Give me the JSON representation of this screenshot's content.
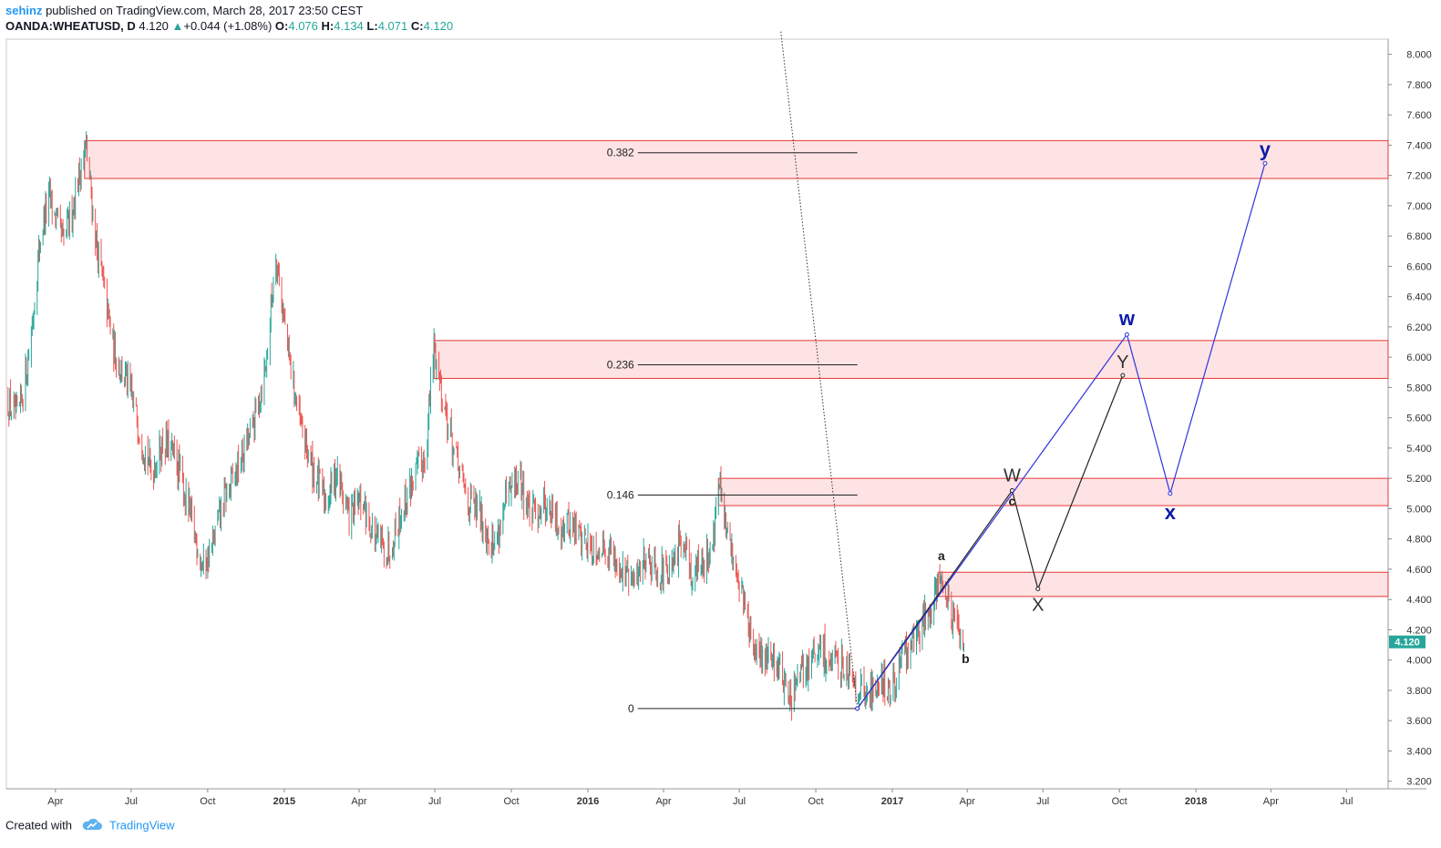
{
  "header": {
    "author": "sehinz",
    "published_text": " published on TradingView.com, March 28, 2017 23:50 CEST",
    "symbol": "OANDA:WHEATUSD, D",
    "last": "4.120",
    "change_arrow": "▲",
    "change": "+0.044 (+1.08%)",
    "open_label": "O:",
    "open": "4.076",
    "high_label": "H:",
    "high": "4.134",
    "low_label": "L:",
    "low": "4.071",
    "close_label": "C:",
    "close": "4.120"
  },
  "footer": {
    "created_with": "Created with",
    "brand": "TradingView",
    "brand_icon": "cloud-icon"
  },
  "colors": {
    "accent": "#2196f3",
    "up": "#26a69a",
    "down": "#ef5350",
    "zone_fill": "#fde3e4",
    "zone_border": "#e53935",
    "primary_wave": "#3333dd",
    "primary_label": "#0d1aa6",
    "secondary_wave": "#222222",
    "price_tag": "#26a69a"
  },
  "chart_data": {
    "type": "candlestick",
    "symbol": "OANDA:WHEATUSD",
    "interval": "D",
    "y_axis": {
      "range": [
        3.15,
        8.1
      ],
      "ticks": [
        "3.200",
        "3.400",
        "3.600",
        "3.800",
        "4.000",
        "4.200",
        "4.400",
        "4.600",
        "4.800",
        "5.000",
        "5.200",
        "5.400",
        "5.600",
        "5.800",
        "6.000",
        "6.200",
        "6.400",
        "6.600",
        "6.800",
        "7.000",
        "7.200",
        "7.400",
        "7.600",
        "7.800",
        "8.000"
      ],
      "last_price_tag": "4.120"
    },
    "x_axis": {
      "range": [
        "2014-02-01",
        "2018-08-20"
      ],
      "ticks": [
        {
          "date": "2014-04-01",
          "label": "Apr",
          "bold": false
        },
        {
          "date": "2014-07-01",
          "label": "Jul",
          "bold": false
        },
        {
          "date": "2014-10-01",
          "label": "Oct",
          "bold": false
        },
        {
          "date": "2015-01-01",
          "label": "2015",
          "bold": true
        },
        {
          "date": "2015-04-01",
          "label": "Apr",
          "bold": false
        },
        {
          "date": "2015-07-01",
          "label": "Jul",
          "bold": false
        },
        {
          "date": "2015-10-01",
          "label": "Oct",
          "bold": false
        },
        {
          "date": "2016-01-01",
          "label": "2016",
          "bold": true
        },
        {
          "date": "2016-04-01",
          "label": "Apr",
          "bold": false
        },
        {
          "date": "2016-07-01",
          "label": "Jul",
          "bold": false
        },
        {
          "date": "2016-10-01",
          "label": "Oct",
          "bold": false
        },
        {
          "date": "2017-01-01",
          "label": "2017",
          "bold": true
        },
        {
          "date": "2017-04-01",
          "label": "Apr",
          "bold": false
        },
        {
          "date": "2017-07-01",
          "label": "Jul",
          "bold": false
        },
        {
          "date": "2017-10-01",
          "label": "Oct",
          "bold": false
        },
        {
          "date": "2018-01-01",
          "label": "2018",
          "bold": true
        },
        {
          "date": "2018-04-01",
          "label": "Apr",
          "bold": false
        },
        {
          "date": "2018-07-01",
          "label": "Jul",
          "bold": false
        }
      ]
    },
    "price_path": [
      [
        "2014-02-01",
        5.72
      ],
      [
        "2014-02-15",
        5.58
      ],
      [
        "2014-03-01",
        6.05
      ],
      [
        "2014-03-15",
        6.85
      ],
      [
        "2014-03-25",
        7.05
      ],
      [
        "2014-04-10",
        6.75
      ],
      [
        "2014-04-20",
        6.95
      ],
      [
        "2014-05-01",
        7.25
      ],
      [
        "2014-05-08",
        7.38
      ],
      [
        "2014-05-20",
        6.75
      ],
      [
        "2014-06-10",
        6.05
      ],
      [
        "2014-06-25",
        5.85
      ],
      [
        "2014-07-10",
        5.55
      ],
      [
        "2014-07-25",
        5.25
      ],
      [
        "2014-08-10",
        5.45
      ],
      [
        "2014-08-25",
        5.3
      ],
      [
        "2014-09-10",
        4.95
      ],
      [
        "2014-09-25",
        4.62
      ],
      [
        "2014-10-05",
        4.72
      ],
      [
        "2014-10-20",
        5.05
      ],
      [
        "2014-11-05",
        5.25
      ],
      [
        "2014-11-25",
        5.55
      ],
      [
        "2014-12-10",
        5.95
      ],
      [
        "2014-12-22",
        6.7
      ],
      [
        "2015-01-05",
        6.05
      ],
      [
        "2015-01-20",
        5.55
      ],
      [
        "2015-02-05",
        5.25
      ],
      [
        "2015-02-20",
        5.05
      ],
      [
        "2015-03-05",
        5.25
      ],
      [
        "2015-03-20",
        4.95
      ],
      [
        "2015-04-05",
        5.05
      ],
      [
        "2015-04-20",
        4.8
      ],
      [
        "2015-05-05",
        4.72
      ],
      [
        "2015-05-20",
        4.95
      ],
      [
        "2015-06-05",
        5.2
      ],
      [
        "2015-06-20",
        5.35
      ],
      [
        "2015-06-30",
        6.08
      ],
      [
        "2015-07-10",
        5.75
      ],
      [
        "2015-07-25",
        5.35
      ],
      [
        "2015-08-10",
        5.05
      ],
      [
        "2015-08-25",
        4.95
      ],
      [
        "2015-09-10",
        4.75
      ],
      [
        "2015-09-25",
        5.05
      ],
      [
        "2015-10-10",
        5.2
      ],
      [
        "2015-10-25",
        4.95
      ],
      [
        "2015-11-10",
        5.05
      ],
      [
        "2015-11-25",
        4.9
      ],
      [
        "2015-12-10",
        4.9
      ],
      [
        "2016-01-05",
        4.75
      ],
      [
        "2016-01-25",
        4.75
      ],
      [
        "2016-02-10",
        4.6
      ],
      [
        "2016-02-25",
        4.5
      ],
      [
        "2016-03-10",
        4.7
      ],
      [
        "2016-03-25",
        4.6
      ],
      [
        "2016-04-10",
        4.55
      ],
      [
        "2016-04-25",
        4.85
      ],
      [
        "2016-05-05",
        4.55
      ],
      [
        "2016-05-25",
        4.7
      ],
      [
        "2016-06-01",
        4.85
      ],
      [
        "2016-06-06",
        5.18
      ],
      [
        "2016-06-15",
        4.85
      ],
      [
        "2016-06-28",
        4.6
      ],
      [
        "2016-07-10",
        4.3
      ],
      [
        "2016-07-20",
        4.0
      ],
      [
        "2016-08-05",
        4.05
      ],
      [
        "2016-08-20",
        3.95
      ],
      [
        "2016-08-30",
        3.72
      ],
      [
        "2016-09-10",
        3.85
      ],
      [
        "2016-09-25",
        4.0
      ],
      [
        "2016-10-10",
        4.05
      ],
      [
        "2016-10-25",
        3.95
      ],
      [
        "2016-11-05",
        4.0
      ],
      [
        "2016-11-20",
        3.85
      ],
      [
        "2016-12-01",
        3.75
      ],
      [
        "2016-12-10",
        3.82
      ],
      [
        "2016-12-20",
        3.9
      ],
      [
        "2016-12-28",
        3.75
      ],
      [
        "2017-01-10",
        3.98
      ],
      [
        "2017-01-25",
        4.1
      ],
      [
        "2017-02-10",
        4.3
      ],
      [
        "2017-02-20",
        4.45
      ],
      [
        "2017-03-01",
        4.56
      ],
      [
        "2017-03-10",
        4.35
      ],
      [
        "2017-03-20",
        4.18
      ],
      [
        "2017-03-28",
        4.12
      ]
    ],
    "last_price": 4.12,
    "zones": [
      {
        "start": "2014-05-06",
        "low": 7.18,
        "high": 7.43
      },
      {
        "start": "2015-06-30",
        "low": 5.86,
        "high": 6.11
      },
      {
        "start": "2016-06-06",
        "low": 5.02,
        "high": 5.2
      },
      {
        "start": "2017-02-25",
        "low": 4.42,
        "high": 4.58
      }
    ],
    "fib_levels": [
      {
        "label": "0.382",
        "value": 7.35,
        "start": "2016-03-01",
        "end": "2016-11-20"
      },
      {
        "label": "0.236",
        "value": 5.95,
        "start": "2016-03-01",
        "end": "2016-11-20"
      },
      {
        "label": "0.146",
        "value": 5.09,
        "start": "2016-03-01",
        "end": "2016-11-20"
      },
      {
        "label": "0",
        "value": 3.68,
        "start": "2016-03-01",
        "end": "2016-11-20"
      }
    ],
    "trendline": {
      "from": [
        "2016-08-20",
        8.15
      ],
      "to": [
        "2016-11-20",
        3.68
      ]
    },
    "primary_path": [
      {
        "date": "2016-11-20",
        "value": 3.68,
        "label": ""
      },
      {
        "date": "2017-10-10",
        "value": 6.15,
        "label": "w"
      },
      {
        "date": "2017-12-01",
        "value": 5.1,
        "label": "x"
      },
      {
        "date": "2018-03-25",
        "value": 7.28,
        "label": "y"
      }
    ],
    "secondary_path": [
      {
        "date": "2016-11-20",
        "value": 3.68,
        "label": ""
      },
      {
        "date": "2017-05-25",
        "value": 5.12,
        "label": "W"
      },
      {
        "date": "2017-06-25",
        "value": 4.47,
        "label": "X"
      },
      {
        "date": "2017-10-05",
        "value": 5.88,
        "label": "Y"
      }
    ],
    "annotations": [
      {
        "text": "a",
        "date": "2017-03-01",
        "value": 4.66
      },
      {
        "text": "b",
        "date": "2017-03-30",
        "value": 3.98
      },
      {
        "text": "c",
        "date": "2017-05-25",
        "value": 5.02
      }
    ]
  }
}
